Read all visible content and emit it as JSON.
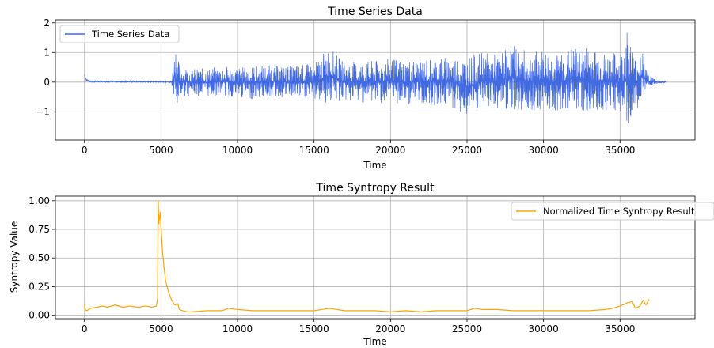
{
  "chart_data": [
    {
      "type": "line",
      "title": "Time Series Data",
      "xlabel": "Time",
      "ylabel": "",
      "xlim": [
        -1900,
        39900
      ],
      "ylim": [
        -1.95,
        2.1
      ],
      "xticks": [
        0,
        5000,
        10000,
        15000,
        20000,
        25000,
        30000,
        35000
      ],
      "yticks": [
        2,
        1,
        0,
        -1
      ],
      "ytick_labels": [
        "2",
        "1",
        "0",
        "−1"
      ],
      "grid": true,
      "legend_position": "upper-left",
      "series": [
        {
          "name": "Time Series Data",
          "color": "#4169e1",
          "envelope": {
            "x": [
              0,
              100,
              300,
              5700,
              5780,
              5900,
              6000,
              6100,
              6300,
              7000,
              8000,
              9000,
              10000,
              11000,
              12000,
              13000,
              14000,
              15000,
              16000,
              17000,
              18000,
              19000,
              20000,
              21000,
              22000,
              23000,
              24000,
              25000,
              26000,
              27000,
              28000,
              29000,
              30000,
              31000,
              32000,
              33000,
              34000,
              35000,
              35500,
              36000,
              36400,
              36800,
              37200,
              37500,
              38000
            ],
            "upper": [
              0.3,
              0.12,
              0.05,
              0.03,
              1.2,
              0.9,
              1.85,
              0.75,
              0.6,
              0.45,
              0.48,
              0.55,
              0.5,
              0.55,
              0.58,
              0.55,
              0.6,
              0.62,
              1.2,
              0.65,
              0.7,
              0.72,
              0.8,
              0.75,
              0.78,
              0.85,
              0.9,
              0.88,
              1.0,
              0.95,
              1.3,
              1.0,
              1.1,
              0.95,
              1.2,
              1.25,
              1.0,
              1.0,
              1.9,
              0.85,
              1.3,
              0.35,
              0.15,
              0.05,
              0.03
            ],
            "lower": [
              0.2,
              0.06,
              0.0,
              -0.02,
              -0.9,
              -0.6,
              -1.7,
              -0.7,
              -0.55,
              -0.45,
              -0.5,
              -0.48,
              -0.55,
              -0.58,
              -0.52,
              -0.55,
              -0.6,
              -0.62,
              -0.75,
              -0.65,
              -0.7,
              -0.7,
              -0.72,
              -0.78,
              -0.75,
              -0.8,
              -0.85,
              -1.2,
              -0.95,
              -0.9,
              -0.95,
              -1.0,
              -0.9,
              -1.0,
              -0.9,
              -1.15,
              -0.95,
              -1.0,
              -1.75,
              -0.85,
              -0.9,
              -0.3,
              -0.12,
              -0.04,
              -0.02
            ]
          }
        }
      ]
    },
    {
      "type": "line",
      "title": "Time Syntropy Result",
      "xlabel": "Time",
      "ylabel": "Syntropy Value",
      "xlim": [
        -1900,
        39900
      ],
      "ylim": [
        -0.03,
        1.04
      ],
      "xticks": [
        0,
        5000,
        10000,
        15000,
        20000,
        25000,
        30000,
        35000
      ],
      "yticks": [
        1.0,
        0.75,
        0.5,
        0.25,
        0.0
      ],
      "ytick_labels": [
        "1.00",
        "0.75",
        "0.50",
        "0.25",
        "0.00"
      ],
      "grid": true,
      "legend_position": "upper-right",
      "series": [
        {
          "name": "Normalized Time Syntropy Result",
          "color": "#ffa500",
          "x": [
            0,
            50,
            150,
            400,
            800,
            1200,
            1500,
            2000,
            2500,
            3000,
            3500,
            4000,
            4400,
            4700,
            4780,
            4820,
            4860,
            4900,
            4950,
            5000,
            5100,
            5200,
            5300,
            5500,
            5700,
            5900,
            6100,
            6200,
            6400,
            6700,
            7000,
            8000,
            9000,
            9400,
            10000,
            11000,
            12000,
            13000,
            14000,
            15000,
            15500,
            16000,
            17000,
            18000,
            19000,
            20000,
            21000,
            22000,
            23000,
            24000,
            25000,
            25500,
            26000,
            27000,
            28000,
            29000,
            30000,
            31000,
            32000,
            33000,
            34000,
            34500,
            35000,
            35500,
            35800,
            36000,
            36300,
            36500,
            36700,
            36900
          ],
          "values": [
            0.1,
            0.05,
            0.04,
            0.06,
            0.07,
            0.08,
            0.07,
            0.09,
            0.07,
            0.08,
            0.07,
            0.08,
            0.07,
            0.08,
            0.15,
            1.0,
            0.8,
            0.85,
            0.9,
            0.78,
            0.55,
            0.42,
            0.3,
            0.2,
            0.13,
            0.09,
            0.1,
            0.05,
            0.04,
            0.03,
            0.03,
            0.04,
            0.04,
            0.06,
            0.05,
            0.04,
            0.04,
            0.04,
            0.04,
            0.04,
            0.05,
            0.06,
            0.04,
            0.04,
            0.04,
            0.03,
            0.04,
            0.03,
            0.04,
            0.04,
            0.04,
            0.06,
            0.05,
            0.05,
            0.04,
            0.04,
            0.04,
            0.04,
            0.04,
            0.04,
            0.05,
            0.06,
            0.08,
            0.11,
            0.12,
            0.06,
            0.08,
            0.13,
            0.09,
            0.14
          ]
        }
      ]
    }
  ]
}
